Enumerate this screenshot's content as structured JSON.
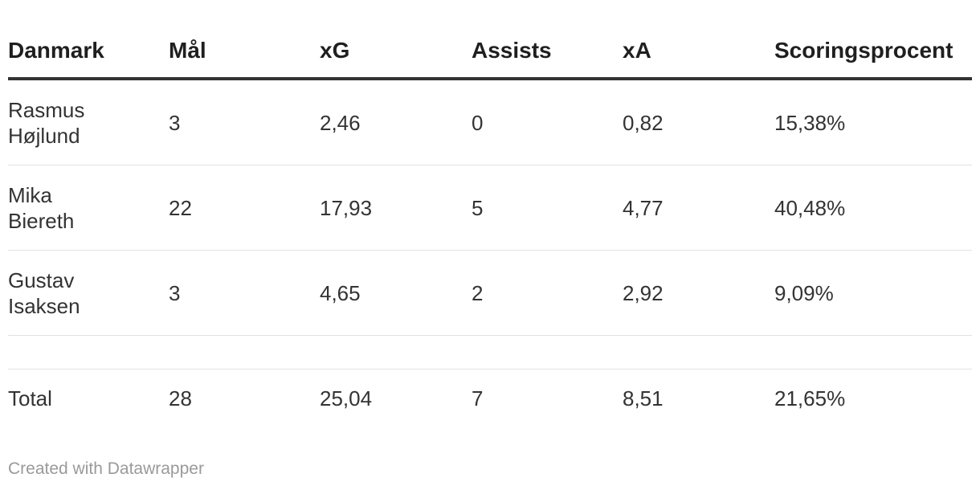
{
  "chart_data": {
    "type": "table",
    "columns": [
      "Danmark",
      "Mål",
      "xG",
      "Assists",
      "xA",
      "Scoringsprocent"
    ],
    "rows": [
      {
        "name_line1": "Rasmus",
        "name_line2": "Højlund",
        "goals": "3",
        "xg": "2,46",
        "assists": "0",
        "xa": "0,82",
        "pct": "15,38%"
      },
      {
        "name_line1": "Mika",
        "name_line2": "Biereth",
        "goals": "22",
        "xg": "17,93",
        "assists": "5",
        "xa": "4,77",
        "pct": "40,48%"
      },
      {
        "name_line1": "Gustav",
        "name_line2": "Isaksen",
        "goals": "3",
        "xg": "4,65",
        "assists": "2",
        "xa": "2,92",
        "pct": "9,09%"
      }
    ],
    "total": {
      "label": "Total",
      "goals": "28",
      "xg": "25,04",
      "assists": "7",
      "xa": "8,51",
      "pct": "21,65%"
    }
  },
  "footer": {
    "credit": "Created with Datawrapper"
  }
}
